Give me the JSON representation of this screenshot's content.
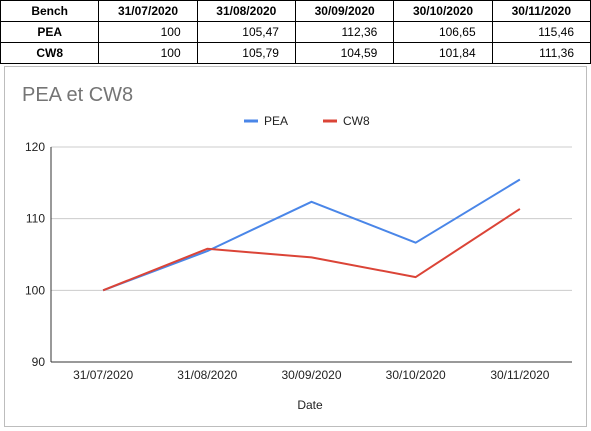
{
  "table": {
    "header": [
      "Bench",
      "31/07/2020",
      "31/08/2020",
      "30/09/2020",
      "30/10/2020",
      "30/11/2020"
    ],
    "rows": [
      {
        "label": "PEA",
        "values": [
          "100",
          "105,47",
          "112,36",
          "106,65",
          "115,46"
        ]
      },
      {
        "label": "CW8",
        "values": [
          "100",
          "105,79",
          "104,59",
          "101,84",
          "111,36"
        ]
      }
    ]
  },
  "chart_data": {
    "type": "line",
    "title": "PEA et CW8",
    "xlabel": "Date",
    "ylabel": "",
    "categories": [
      "31/07/2020",
      "31/08/2020",
      "30/09/2020",
      "30/10/2020",
      "30/11/2020"
    ],
    "series": [
      {
        "name": "PEA",
        "color": "#4a86e8",
        "values": [
          100,
          105.47,
          112.36,
          106.65,
          115.46
        ]
      },
      {
        "name": "CW8",
        "color": "#db4437",
        "values": [
          100,
          105.79,
          104.59,
          101.84,
          111.36
        ]
      }
    ],
    "ylim": [
      90,
      120
    ],
    "yticks": [
      90,
      100,
      110,
      120
    ],
    "grid": true,
    "legend_position": "top-center"
  }
}
